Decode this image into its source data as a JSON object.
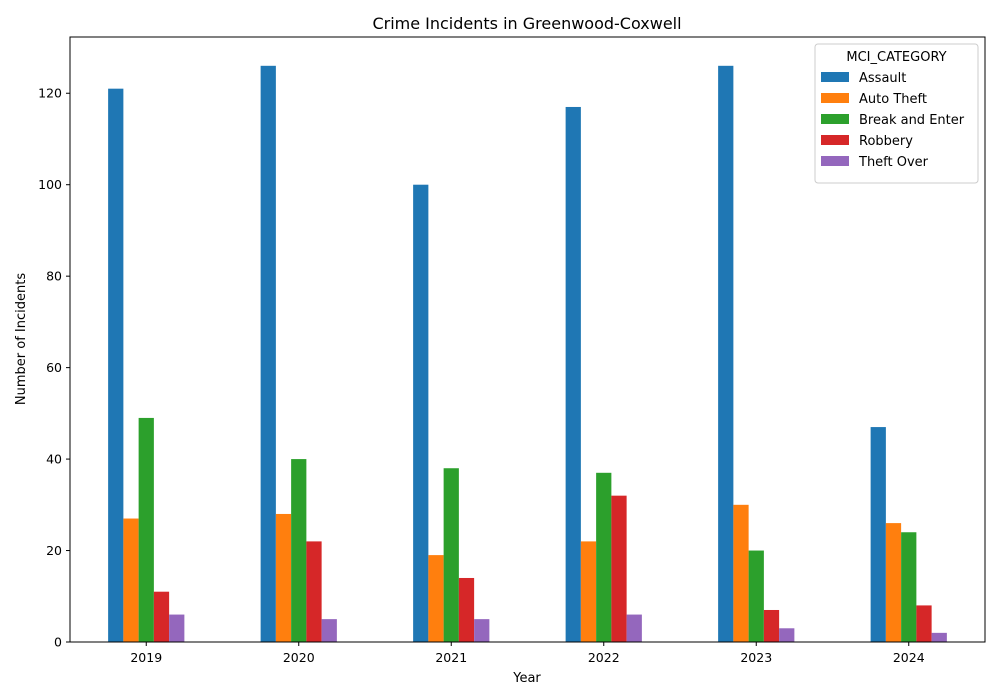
{
  "chart_data": {
    "type": "bar",
    "title": "Crime Incidents in Greenwood-Coxwell",
    "xlabel": "Year",
    "ylabel": "Number of Incidents",
    "categories": [
      "2019",
      "2020",
      "2021",
      "2022",
      "2023",
      "2024"
    ],
    "ylim": [
      0,
      132.3
    ],
    "yticks": [
      0,
      20,
      40,
      60,
      80,
      100,
      120
    ],
    "grid": false,
    "legend": {
      "title": "MCI_CATEGORY",
      "placement": "top-right"
    },
    "series": [
      {
        "name": "Assault",
        "color": "#1f77b4",
        "values": [
          121,
          126,
          100,
          117,
          126,
          47
        ]
      },
      {
        "name": "Auto Theft",
        "color": "#ff7f0e",
        "values": [
          27,
          28,
          19,
          22,
          30,
          26
        ]
      },
      {
        "name": "Break and Enter",
        "color": "#2ca02c",
        "values": [
          49,
          40,
          38,
          37,
          20,
          24
        ]
      },
      {
        "name": "Robbery",
        "color": "#d62728",
        "values": [
          11,
          22,
          14,
          32,
          7,
          8
        ]
      },
      {
        "name": "Theft Over",
        "color": "#9467bd",
        "values": [
          6,
          5,
          5,
          6,
          3,
          2
        ]
      }
    ]
  }
}
